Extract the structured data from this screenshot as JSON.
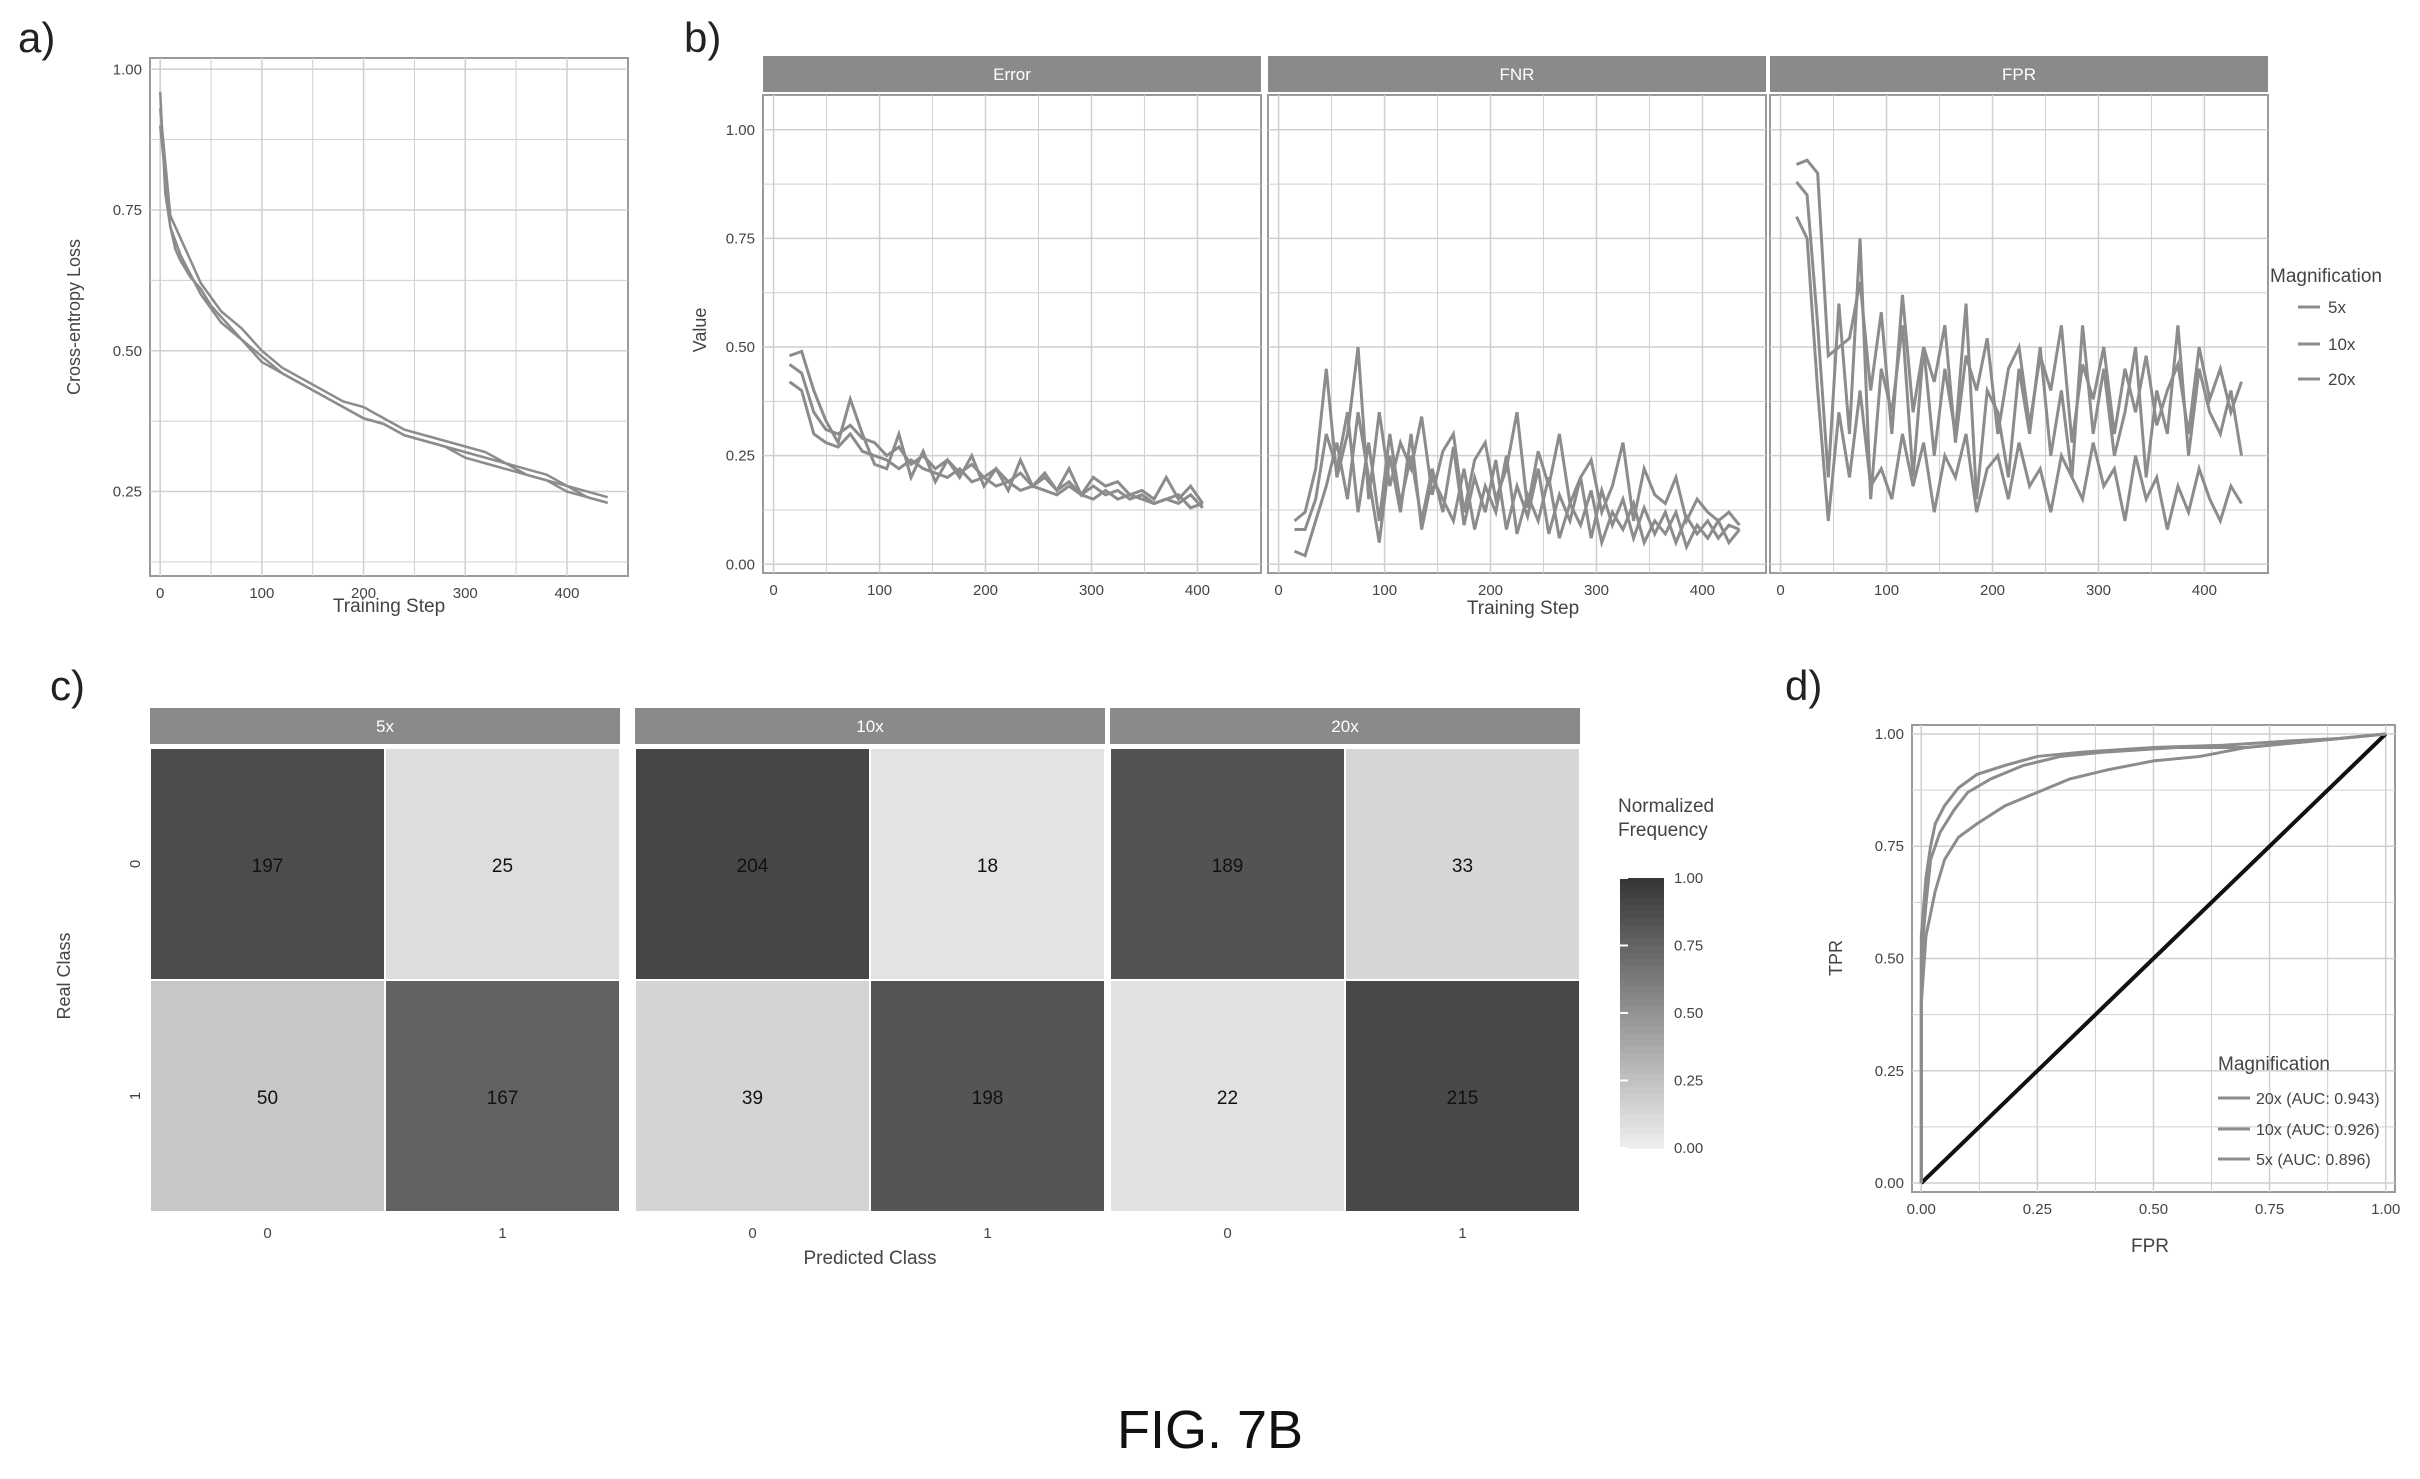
{
  "figure_caption": "FIG. 7B",
  "colors": {
    "panel_bg": "#ffffff",
    "grid": "#cfcfcf",
    "strip_bg": "#8a8a8a",
    "strip_text": "#ffffff",
    "axis_text": "#444444",
    "series_gray": "#8c8c8c",
    "diagonal": "#111111"
  },
  "chart_data": [
    {
      "panel_label": "a)",
      "type": "line",
      "xlabel": "Training Step",
      "ylabel": "Cross-entropy Loss",
      "xlim": [
        -10,
        460
      ],
      "ylim": [
        0.1,
        1.02
      ],
      "xticks": [
        0,
        100,
        200,
        300,
        400
      ],
      "yticks": [
        0.25,
        0.5,
        0.75,
        1.0
      ],
      "ytick_labels": [
        "0.25",
        "0.50",
        "0.75",
        "1.00"
      ],
      "grid": true,
      "series": [
        {
          "x": [
            0,
            5,
            10,
            15,
            20,
            30,
            40,
            50,
            60,
            70,
            80,
            100,
            120,
            140,
            160,
            180,
            200,
            220,
            240,
            260,
            280,
            300,
            320,
            340,
            360,
            380,
            400,
            420,
            440
          ],
          "y": [
            0.96,
            0.78,
            0.72,
            0.68,
            0.66,
            0.63,
            0.61,
            0.58,
            0.56,
            0.54,
            0.52,
            0.49,
            0.46,
            0.44,
            0.42,
            0.4,
            0.38,
            0.37,
            0.35,
            0.34,
            0.33,
            0.32,
            0.31,
            0.3,
            0.28,
            0.27,
            0.25,
            0.24,
            0.23
          ]
        },
        {
          "x": [
            0,
            10,
            20,
            40,
            60,
            80,
            100,
            120,
            140,
            160,
            180,
            200,
            220,
            240,
            260,
            280,
            300,
            320,
            340,
            360,
            380,
            400,
            420,
            440
          ],
          "y": [
            0.93,
            0.74,
            0.7,
            0.62,
            0.57,
            0.54,
            0.5,
            0.47,
            0.45,
            0.43,
            0.41,
            0.4,
            0.38,
            0.36,
            0.35,
            0.34,
            0.33,
            0.32,
            0.3,
            0.29,
            0.28,
            0.26,
            0.25,
            0.24
          ]
        },
        {
          "x": [
            0,
            10,
            20,
            40,
            60,
            80,
            100,
            120,
            140,
            160,
            180,
            200,
            220,
            240,
            260,
            280,
            300,
            320,
            340,
            360,
            380,
            400,
            420,
            440
          ],
          "y": [
            0.9,
            0.72,
            0.67,
            0.6,
            0.55,
            0.52,
            0.48,
            0.46,
            0.44,
            0.42,
            0.4,
            0.38,
            0.37,
            0.35,
            0.34,
            0.33,
            0.31,
            0.3,
            0.29,
            0.28,
            0.27,
            0.26,
            0.24,
            0.23
          ]
        }
      ]
    },
    {
      "panel_label": "b)",
      "type": "line",
      "facets": [
        "Error",
        "FNR",
        "FPR"
      ],
      "xlabel": "Training Step",
      "ylabel": "Value",
      "xlim": [
        -10,
        460
      ],
      "ylim": [
        -0.02,
        1.08
      ],
      "xticks": [
        0,
        100,
        200,
        300,
        400
      ],
      "yticks": [
        0.0,
        0.25,
        0.5,
        0.75,
        1.0
      ],
      "ytick_labels": [
        "0.00",
        "0.25",
        "0.50",
        "0.75",
        "1.00"
      ],
      "grid": true,
      "legend": {
        "title": "Magnification",
        "position": "right",
        "entries": [
          "5x",
          "10x",
          "20x"
        ]
      },
      "x": [
        15,
        25,
        35,
        45,
        55,
        65,
        75,
        85,
        95,
        105,
        115,
        125,
        135,
        145,
        155,
        165,
        175,
        185,
        195,
        205,
        215,
        225,
        235,
        245,
        255,
        265,
        275,
        285,
        295,
        305,
        315,
        325,
        335,
        345,
        355,
        365,
        375,
        385,
        395,
        405,
        415,
        425,
        435
      ],
      "panels": [
        {
          "facet": "Error",
          "series": [
            {
              "name": "5x",
              "values": [
                0.42,
                0.4,
                0.3,
                0.28,
                0.27,
                0.3,
                0.26,
                0.25,
                0.24,
                0.22,
                0.24,
                0.22,
                0.21,
                0.2,
                0.22,
                0.19,
                0.2,
                0.18,
                0.19,
                0.17,
                0.18,
                0.17,
                0.16,
                0.18,
                0.16,
                0.15,
                0.17,
                0.15,
                0.16,
                0.15,
                0.14,
                0.15,
                0.16,
                0.13,
                0.14
              ]
            },
            {
              "name": "10x",
              "values": [
                0.46,
                0.44,
                0.35,
                0.31,
                0.3,
                0.32,
                0.29,
                0.28,
                0.25,
                0.27,
                0.23,
                0.25,
                0.22,
                0.24,
                0.21,
                0.23,
                0.2,
                0.22,
                0.19,
                0.21,
                0.18,
                0.2,
                0.17,
                0.19,
                0.16,
                0.18,
                0.16,
                0.17,
                0.15,
                0.16,
                0.14,
                0.15,
                0.14,
                0.16,
                0.13
              ]
            },
            {
              "name": "20x",
              "values": [
                0.48,
                0.49,
                0.4,
                0.33,
                0.28,
                0.38,
                0.3,
                0.23,
                0.22,
                0.3,
                0.2,
                0.26,
                0.19,
                0.24,
                0.2,
                0.25,
                0.18,
                0.22,
                0.17,
                0.24,
                0.18,
                0.21,
                0.17,
                0.22,
                0.16,
                0.2,
                0.18,
                0.19,
                0.16,
                0.17,
                0.15,
                0.2,
                0.15,
                0.18,
                0.14
              ]
            }
          ]
        },
        {
          "facet": "FNR",
          "series": [
            {
              "name": "5x",
              "values": [
                0.08,
                0.08,
                0.15,
                0.3,
                0.22,
                0.35,
                0.12,
                0.28,
                0.1,
                0.3,
                0.14,
                0.25,
                0.1,
                0.22,
                0.12,
                0.27,
                0.09,
                0.2,
                0.12,
                0.24,
                0.08,
                0.18,
                0.11,
                0.22,
                0.07,
                0.16,
                0.1,
                0.2,
                0.06,
                0.17,
                0.09,
                0.15,
                0.06,
                0.13,
                0.07,
                0.12,
                0.05,
                0.11,
                0.07,
                0.1,
                0.06,
                0.09,
                0.08
              ]
            },
            {
              "name": "10x",
              "values": [
                0.03,
                0.02,
                0.1,
                0.18,
                0.28,
                0.15,
                0.35,
                0.2,
                0.05,
                0.25,
                0.12,
                0.3,
                0.08,
                0.2,
                0.15,
                0.1,
                0.22,
                0.08,
                0.18,
                0.12,
                0.25,
                0.07,
                0.16,
                0.1,
                0.2,
                0.06,
                0.14,
                0.09,
                0.17,
                0.05,
                0.12,
                0.08,
                0.14,
                0.05,
                0.1,
                0.07,
                0.12,
                0.04,
                0.09,
                0.06,
                0.1,
                0.05,
                0.08
              ]
            },
            {
              "name": "20x",
              "values": [
                0.1,
                0.12,
                0.22,
                0.45,
                0.2,
                0.3,
                0.5,
                0.15,
                0.35,
                0.18,
                0.28,
                0.22,
                0.34,
                0.16,
                0.26,
                0.3,
                0.12,
                0.24,
                0.28,
                0.15,
                0.22,
                0.35,
                0.13,
                0.26,
                0.18,
                0.3,
                0.14,
                0.2,
                0.24,
                0.12,
                0.18,
                0.28,
                0.1,
                0.22,
                0.16,
                0.14,
                0.2,
                0.1,
                0.15,
                0.12,
                0.1,
                0.12,
                0.09
              ]
            }
          ]
        },
        {
          "facet": "FPR",
          "series": [
            {
              "name": "5x",
              "values": [
                0.88,
                0.85,
                0.55,
                0.2,
                0.6,
                0.3,
                0.75,
                0.15,
                0.45,
                0.35,
                0.55,
                0.2,
                0.5,
                0.25,
                0.45,
                0.3,
                0.6,
                0.15,
                0.4,
                0.35,
                0.2,
                0.45,
                0.3,
                0.5,
                0.25,
                0.4,
                0.2,
                0.55,
                0.3,
                0.45,
                0.25,
                0.35,
                0.5,
                0.2,
                0.4,
                0.3,
                0.55,
                0.25,
                0.45,
                0.35,
                0.3,
                0.4,
                0.25
              ]
            },
            {
              "name": "10x",
              "values": [
                0.92,
                0.93,
                0.9,
                0.48,
                0.5,
                0.52,
                0.65,
                0.4,
                0.58,
                0.3,
                0.62,
                0.35,
                0.5,
                0.42,
                0.55,
                0.28,
                0.48,
                0.4,
                0.52,
                0.3,
                0.45,
                0.5,
                0.32,
                0.48,
                0.4,
                0.55,
                0.28,
                0.46,
                0.38,
                0.5,
                0.3,
                0.45,
                0.35,
                0.48,
                0.32,
                0.4,
                0.46,
                0.3,
                0.5,
                0.38,
                0.45,
                0.35,
                0.42
              ]
            },
            {
              "name": "20x",
              "values": [
                0.8,
                0.75,
                0.4,
                0.1,
                0.35,
                0.2,
                0.4,
                0.18,
                0.22,
                0.15,
                0.3,
                0.18,
                0.28,
                0.12,
                0.25,
                0.2,
                0.3,
                0.12,
                0.22,
                0.25,
                0.15,
                0.28,
                0.18,
                0.22,
                0.12,
                0.25,
                0.2,
                0.15,
                0.28,
                0.18,
                0.22,
                0.1,
                0.25,
                0.15,
                0.2,
                0.08,
                0.18,
                0.12,
                0.22,
                0.15,
                0.1,
                0.18,
                0.14
              ]
            }
          ]
        }
      ]
    },
    {
      "panel_label": "c)",
      "type": "heatmap",
      "facets": [
        "5x",
        "10x",
        "20x"
      ],
      "xlabel": "Predicted Class",
      "ylabel": "Real Class",
      "x_categories": [
        "0",
        "1"
      ],
      "y_categories": [
        "0",
        "1"
      ],
      "legend": {
        "title_line1": "Normalized",
        "title_line2": "Frequency",
        "ticks": [
          "0.00",
          "0.25",
          "0.50",
          "0.75",
          "1.00"
        ],
        "tick_values": [
          0,
          0.25,
          0.5,
          0.75,
          1.0
        ]
      },
      "matrices": [
        {
          "facet": "5x",
          "cells": [
            [
              197,
              25
            ],
            [
              50,
              167
            ]
          ],
          "labels": [
            [
              "197",
              "25"
            ],
            [
              "50",
              "167"
            ]
          ],
          "intensity": [
            [
              0.89,
              0.11
            ],
            [
              0.23,
              0.77
            ]
          ]
        },
        {
          "facet": "10x",
          "cells": [
            [
              204,
              18
            ],
            [
              39,
              198
            ]
          ],
          "labels": [
            [
              "204",
              "18"
            ],
            [
              "39",
              "198"
            ]
          ],
          "intensity": [
            [
              0.92,
              0.08
            ],
            [
              0.16,
              0.84
            ]
          ]
        },
        {
          "facet": "20x",
          "cells": [
            [
              189,
              33
            ],
            [
              22,
              215
            ]
          ],
          "labels": [
            [
              "189",
              "33"
            ],
            [
              "22",
              "215"
            ]
          ],
          "intensity": [
            [
              0.85,
              0.15
            ],
            [
              0.09,
              0.91
            ]
          ]
        }
      ]
    },
    {
      "panel_label": "d)",
      "type": "line",
      "xlabel": "FPR",
      "ylabel": "TPR",
      "xlim": [
        -0.02,
        1.02
      ],
      "ylim": [
        -0.02,
        1.02
      ],
      "xticks": [
        0,
        0.25,
        0.5,
        0.75,
        1.0
      ],
      "yticks": [
        0,
        0.25,
        0.5,
        0.75,
        1.0
      ],
      "xtick_labels": [
        "0.00",
        "0.25",
        "0.50",
        "0.75",
        "1.00"
      ],
      "ytick_labels": [
        "0.00",
        "0.25",
        "0.50",
        "0.75",
        "1.00"
      ],
      "grid": true,
      "legend": {
        "title": "Magnification",
        "position": "bottom-right",
        "entries": [
          "20x (AUC: 0.943)",
          "10x (AUC: 0.926)",
          "5x (AUC: 0.896)"
        ]
      },
      "series": [
        {
          "name": "20x (AUC: 0.943)",
          "x": [
            0,
            0,
            0.01,
            0.02,
            0.03,
            0.05,
            0.08,
            0.12,
            0.18,
            0.25,
            0.35,
            0.5,
            0.65,
            0.8,
            0.9,
            1.0
          ],
          "y": [
            0,
            0.55,
            0.68,
            0.75,
            0.8,
            0.84,
            0.88,
            0.91,
            0.93,
            0.95,
            0.96,
            0.97,
            0.975,
            0.985,
            0.99,
            1.0
          ]
        },
        {
          "name": "10x (AUC: 0.926)",
          "x": [
            0,
            0,
            0.01,
            0.02,
            0.04,
            0.07,
            0.1,
            0.15,
            0.22,
            0.3,
            0.4,
            0.55,
            0.7,
            0.85,
            1.0
          ],
          "y": [
            0,
            0.5,
            0.62,
            0.72,
            0.78,
            0.83,
            0.87,
            0.9,
            0.93,
            0.95,
            0.96,
            0.97,
            0.97,
            0.985,
            1.0
          ]
        },
        {
          "name": "5x (AUC: 0.896)",
          "x": [
            0,
            0,
            0.01,
            0.03,
            0.05,
            0.08,
            0.12,
            0.18,
            0.25,
            0.32,
            0.4,
            0.5,
            0.6,
            0.7,
            0.85,
            1.0
          ],
          "y": [
            0,
            0.4,
            0.55,
            0.65,
            0.72,
            0.77,
            0.8,
            0.84,
            0.87,
            0.9,
            0.92,
            0.94,
            0.95,
            0.97,
            0.985,
            1.0
          ]
        }
      ],
      "reference_line": {
        "x": [
          0,
          1
        ],
        "y": [
          0,
          1
        ]
      }
    }
  ]
}
